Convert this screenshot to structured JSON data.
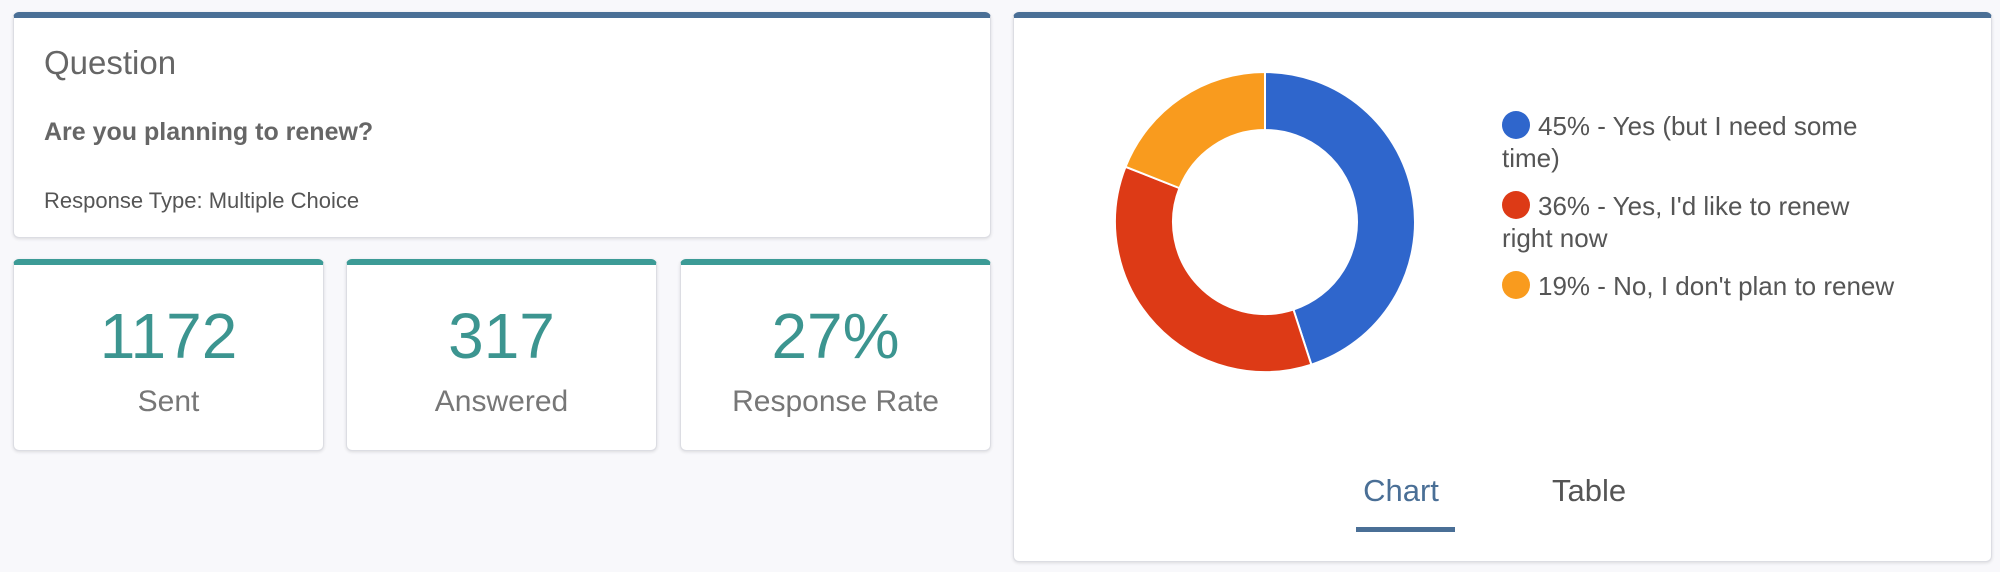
{
  "question": {
    "heading": "Question",
    "text": "Are you planning to renew?",
    "response_type": "Response Type: Multiple Choice"
  },
  "stats": [
    {
      "value": "1172",
      "label": "Sent"
    },
    {
      "value": "317",
      "label": "Answered"
    },
    {
      "value": "27%",
      "label": "Response Rate"
    }
  ],
  "chart_data": {
    "type": "pie",
    "categories": [
      "Yes (but I need some time)",
      "Yes, I'd like to renew right now",
      "No, I don't plan to renew"
    ],
    "values": [
      45,
      36,
      19
    ],
    "colors": [
      "#2f66cc",
      "#dd3a16",
      "#f99b1e"
    ],
    "legend": [
      "45% - Yes (but I need some time)",
      "36% - Yes, I'd like to renew right now",
      "19% - No, I don't plan to renew"
    ]
  },
  "tabs": {
    "chart": "Chart",
    "table": "Table"
  }
}
